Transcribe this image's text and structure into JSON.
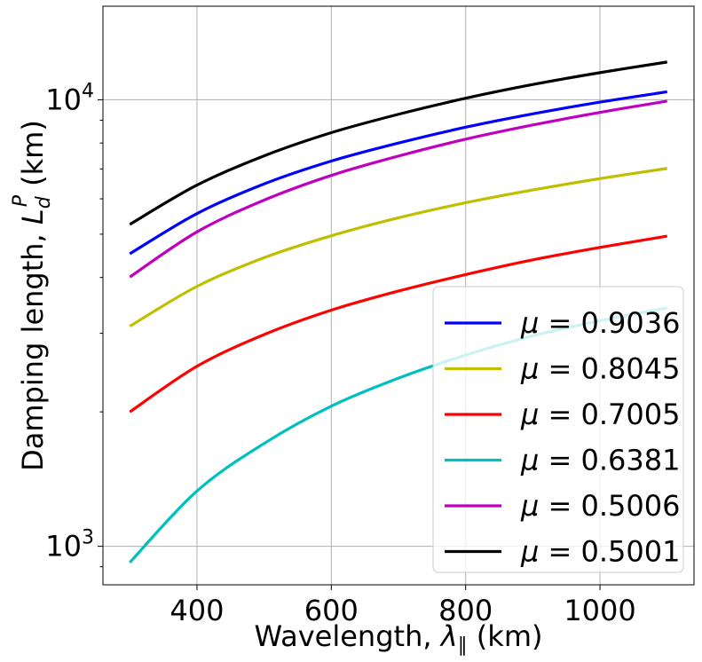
{
  "chart_data": {
    "type": "line",
    "xlabel": "Wavelength, λ∥ (km)",
    "ylabel": "Damping length, L_d^P (km)",
    "ylabel_main": "Damping length, ",
    "ylabel_symbol": "L",
    "ylabel_sub": "d",
    "ylabel_sup": "P",
    "ylabel_unit": " (km)",
    "xlabel_main": "Wavelength, ",
    "xlabel_symbol": "λ",
    "xlabel_sub": "∥",
    "xlabel_unit": " (km)",
    "xlim": [
      260,
      1140
    ],
    "ylim": [
      820,
      16200
    ],
    "yscale": "log",
    "grid": true,
    "legend_position": "lower-right",
    "x_ticks": [
      400,
      600,
      800,
      1000
    ],
    "x_tick_labels": [
      "400",
      "600",
      "800",
      "1000"
    ],
    "y_major_ticks": [
      1000,
      10000
    ],
    "y_tick_base": "10",
    "y_tick_exponents": [
      "3",
      "4"
    ],
    "series": [
      {
        "name": "μ = 0.9036",
        "legend_symbol": "μ",
        "legend_value": " = 0.9036",
        "color": "#0000ff",
        "x": [
          300,
          400,
          500,
          600,
          700,
          800,
          900,
          1000,
          1100
        ],
        "y": [
          4520,
          5560,
          6480,
          7290,
          8000,
          8680,
          9300,
          9880,
          10420
        ]
      },
      {
        "name": "μ = 0.8045",
        "legend_symbol": "μ",
        "legend_value": " = 0.8045",
        "color": "#bfbf00",
        "x": [
          300,
          400,
          500,
          600,
          700,
          800,
          900,
          1000,
          1100
        ],
        "y": [
          3110,
          3820,
          4430,
          4960,
          5440,
          5880,
          6280,
          6660,
          7020
        ]
      },
      {
        "name": "μ = 0.7005",
        "legend_symbol": "μ",
        "legend_value": " = 0.7005",
        "color": "#ff0000",
        "x": [
          300,
          400,
          500,
          600,
          700,
          800,
          900,
          1000,
          1100
        ],
        "y": [
          2000,
          2530,
          2980,
          3380,
          3730,
          4060,
          4380,
          4670,
          4950
        ]
      },
      {
        "name": "μ = 0.6381",
        "legend_symbol": "μ",
        "legend_value": " = 0.6381",
        "color": "#00bfbf",
        "x": [
          300,
          400,
          500,
          600,
          700,
          800,
          900,
          1000,
          1100
        ],
        "y": [
          920,
          1330,
          1700,
          2060,
          2380,
          2680,
          2960,
          3200,
          3420
        ]
      },
      {
        "name": "μ = 0.5006",
        "legend_symbol": "μ",
        "legend_value": " = 0.5006",
        "color": "#bf00bf",
        "x": [
          300,
          400,
          500,
          600,
          700,
          800,
          900,
          1000,
          1100
        ],
        "y": [
          4010,
          5060,
          5960,
          6770,
          7480,
          8160,
          8780,
          9370,
          9930
        ]
      },
      {
        "name": "μ = 0.5001",
        "legend_symbol": "μ",
        "legend_value": " = 0.5001",
        "color": "#000000",
        "x": [
          300,
          400,
          500,
          600,
          700,
          800,
          900,
          1000,
          1100
        ],
        "y": [
          5260,
          6440,
          7490,
          8440,
          9280,
          10080,
          10820,
          11500,
          12150
        ]
      }
    ]
  }
}
